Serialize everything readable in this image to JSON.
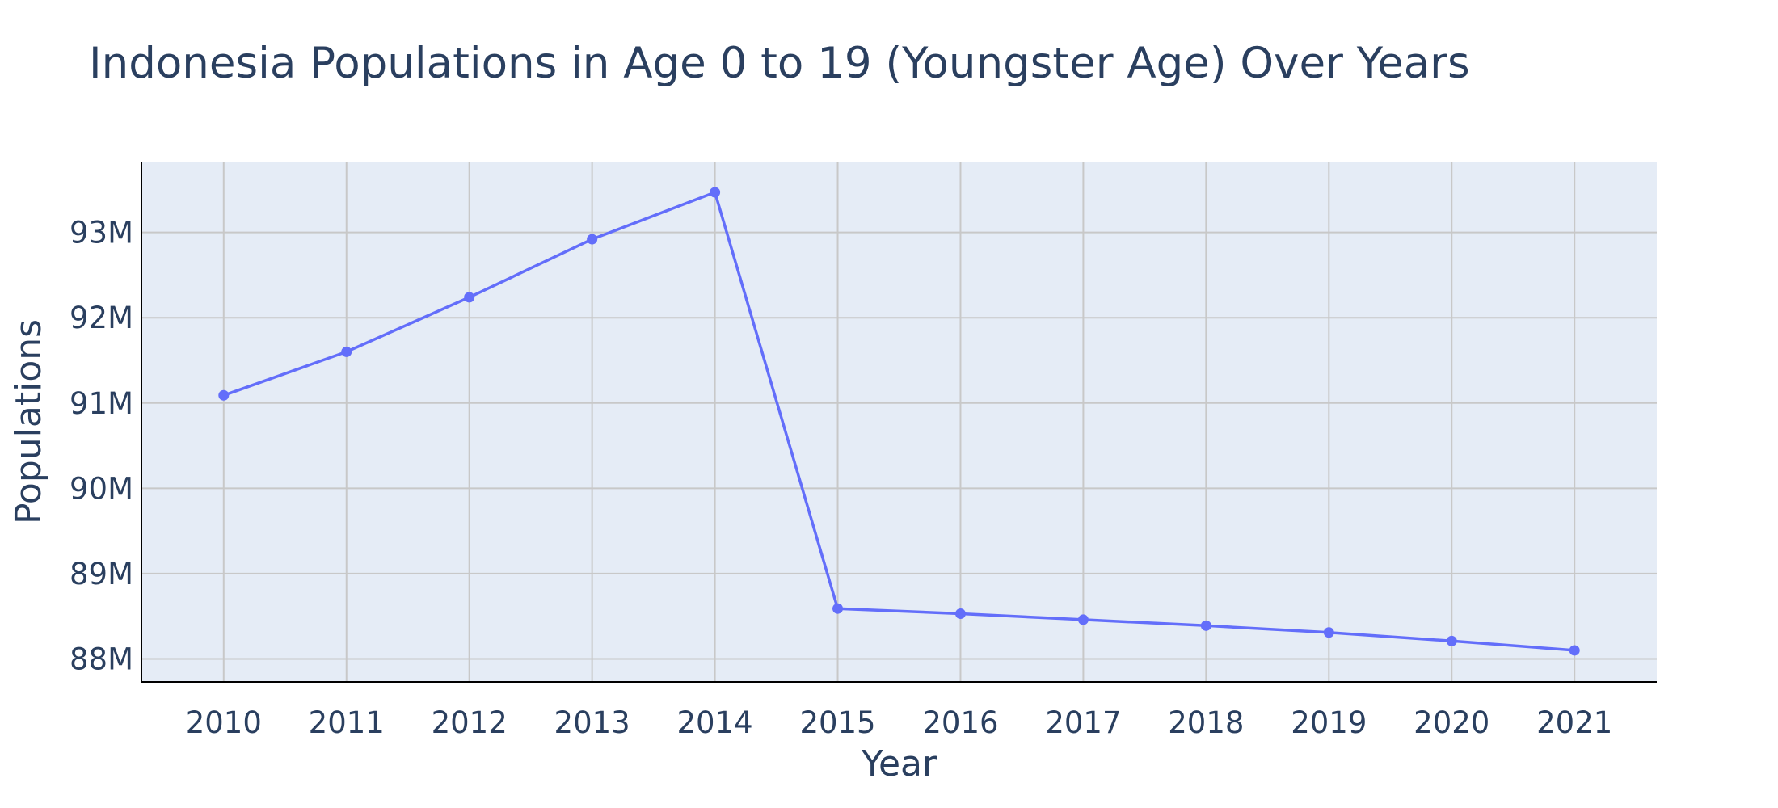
{
  "chart_data": {
    "type": "line",
    "title": "Indonesia Populations in Age 0 to 19 (Youngster Age) Over Years",
    "xlabel": "Year",
    "ylabel": "Populations",
    "x": [
      2010,
      2011,
      2012,
      2013,
      2014,
      2015,
      2016,
      2017,
      2018,
      2019,
      2020,
      2021
    ],
    "series": [
      {
        "values": [
          91090000,
          91600000,
          92240000,
          92920000,
          93470000,
          88590000,
          88530000,
          88460000,
          88390000,
          88310000,
          88210000,
          88100000
        ]
      }
    ],
    "yticks": [
      88000000,
      89000000,
      90000000,
      91000000,
      92000000,
      93000000
    ],
    "ytick_labels": [
      "88M",
      "89M",
      "90M",
      "91M",
      "92M",
      "93M"
    ],
    "xlim": [
      2009.33,
      2021.67
    ],
    "ylim": [
      87730000,
      93830000
    ],
    "grid": true,
    "colors": {
      "line": "#636efa",
      "plot_bg": "#e5ecf6",
      "grid": "#c8c8c8",
      "text": "#2a3f5f"
    }
  }
}
